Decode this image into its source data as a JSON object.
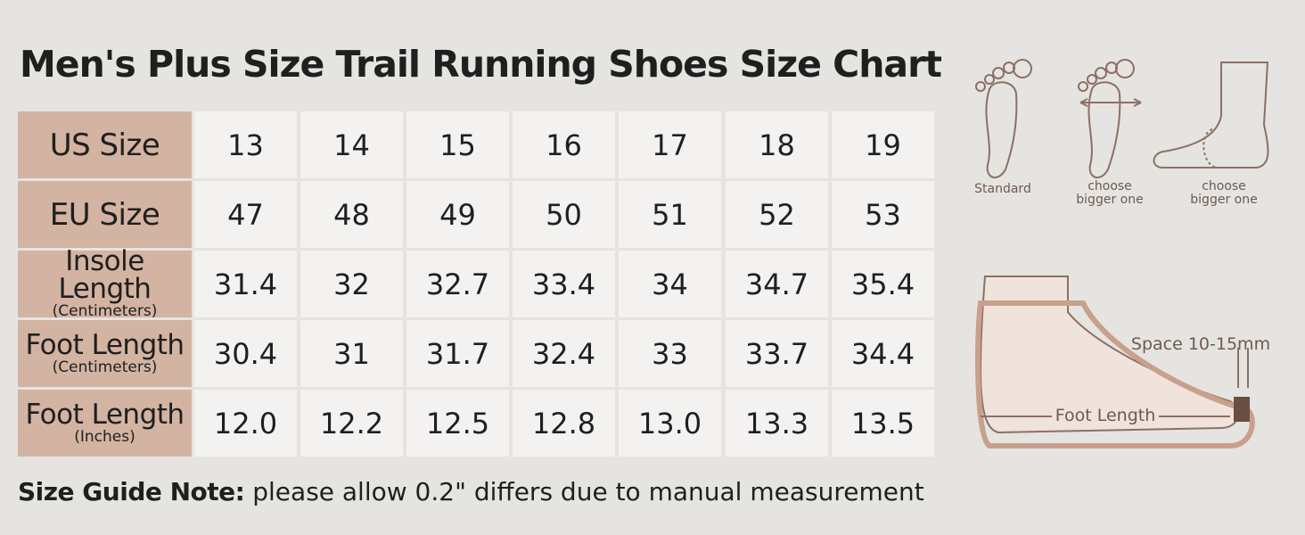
{
  "title": "Men's Plus Size Trail Running Shoes Size Chart",
  "table": {
    "rows": [
      {
        "label": "US Size",
        "values": [
          "13",
          "14",
          "15",
          "16",
          "17",
          "18",
          "19"
        ]
      },
      {
        "label": "EU Size",
        "values": [
          "47",
          "48",
          "49",
          "50",
          "51",
          "52",
          "53"
        ]
      },
      {
        "label": "Insole Length",
        "unit": "(Centimeters)",
        "values": [
          "31.4",
          "32",
          "32.7",
          "33.4",
          "34",
          "34.7",
          "35.4"
        ]
      },
      {
        "label": "Foot Length",
        "unit": "(Centimeters)",
        "values": [
          "30.4",
          "31",
          "31.7",
          "32.4",
          "33",
          "33.7",
          "34.4"
        ]
      },
      {
        "label": "Foot Length",
        "unit": "(Inches)",
        "values": [
          "12.0",
          "12.2",
          "12.5",
          "12.8",
          "13.0",
          "13.3",
          "13.5"
        ]
      }
    ]
  },
  "note": {
    "label": "Size Guide Note:",
    "text": "please allow 0.2\" differs due to manual measurement"
  },
  "illustrations": {
    "fit_labels": [
      "Standard",
      "choose bigger one",
      "choose bigger one"
    ],
    "space_label": "Space 10-15mm",
    "foot_length_label": "Foot Length"
  }
}
